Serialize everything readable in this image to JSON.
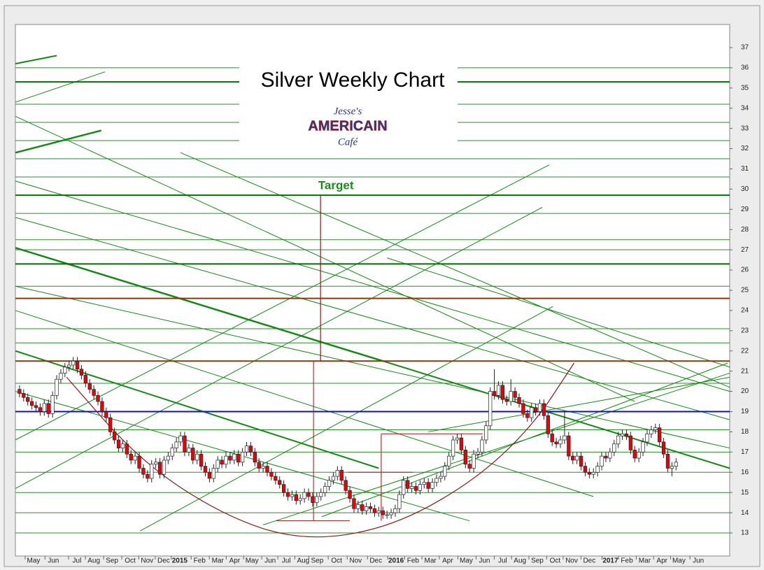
{
  "chart_data": {
    "type": "candlestick",
    "title": "Silver Weekly Chart",
    "logo": {
      "line1": "Jesse's",
      "line2": "AMERICAIN",
      "line3": "Café"
    },
    "xlim": [
      0,
      173
    ],
    "ylim": [
      11.86,
      38.14
    ],
    "yticks": [
      13,
      14,
      15,
      16,
      17,
      18,
      19,
      20,
      21,
      22,
      23,
      24,
      25,
      26,
      27,
      28,
      29,
      30,
      31,
      32,
      33,
      34,
      35,
      36,
      37
    ],
    "xticks": [
      {
        "value": 4.4,
        "label": "May"
      },
      {
        "value": 9.2,
        "label": "Jun"
      },
      {
        "value": 14.9,
        "label": "Jul"
      },
      {
        "value": 19.0,
        "label": "Aug"
      },
      {
        "value": 23.4,
        "label": "Sep"
      },
      {
        "value": 27.8,
        "label": "Oct"
      },
      {
        "value": 31.9,
        "label": "Nov"
      },
      {
        "value": 35.9,
        "label": "Dec"
      },
      {
        "value": 39.8,
        "label": "2015"
      },
      {
        "value": 44.6,
        "label": "Feb"
      },
      {
        "value": 49.0,
        "label": "Mar"
      },
      {
        "value": 53.1,
        "label": "Apr"
      },
      {
        "value": 57.3,
        "label": "May"
      },
      {
        "value": 61.7,
        "label": "Jun"
      },
      {
        "value": 65.6,
        "label": "Jul"
      },
      {
        "value": 69.7,
        "label": "Aug"
      },
      {
        "value": 73.1,
        "label": "Sep"
      },
      {
        "value": 77.8,
        "label": "Oct"
      },
      {
        "value": 82.4,
        "label": "Nov"
      },
      {
        "value": 87.3,
        "label": "Dec"
      },
      {
        "value": 92.2,
        "label": "2016"
      },
      {
        "value": 96.3,
        "label": "Feb"
      },
      {
        "value": 100.5,
        "label": "Mar"
      },
      {
        "value": 104.7,
        "label": "Apr"
      },
      {
        "value": 109.2,
        "label": "May"
      },
      {
        "value": 113.6,
        "label": "Jun"
      },
      {
        "value": 118.0,
        "label": "Jul"
      },
      {
        "value": 122.2,
        "label": "Aug"
      },
      {
        "value": 126.4,
        "label": "Sep"
      },
      {
        "value": 130.7,
        "label": "Oct"
      },
      {
        "value": 134.7,
        "label": "Nov"
      },
      {
        "value": 139.0,
        "label": "Dec"
      },
      {
        "value": 144.1,
        "label": "2017"
      },
      {
        "value": 148.1,
        "label": "Feb"
      },
      {
        "value": 152.4,
        "label": "Mar"
      },
      {
        "value": 156.6,
        "label": "Apr"
      },
      {
        "value": 160.7,
        "label": "May"
      },
      {
        "value": 165.4,
        "label": "Jun"
      }
    ],
    "up_color": "#ffffff",
    "down_color": "#e8000b",
    "x": [
      1,
      2,
      3,
      4,
      5,
      6,
      7,
      8,
      9,
      10,
      11,
      12,
      13,
      14,
      15,
      16,
      17,
      18,
      19,
      20,
      21,
      22,
      23,
      24,
      25,
      26,
      27,
      28,
      29,
      30,
      31,
      32,
      33,
      34,
      35,
      36,
      37,
      38,
      39,
      40,
      41,
      42,
      43,
      44,
      45,
      46,
      47,
      48,
      49,
      50,
      51,
      52,
      53,
      54,
      55,
      56,
      57,
      58,
      59,
      60,
      61,
      62,
      63,
      64,
      65,
      66,
      67,
      68,
      69,
      70,
      71,
      72,
      73,
      74,
      75,
      76,
      77,
      78,
      79,
      80,
      81,
      82,
      83,
      84,
      85,
      86,
      87,
      88,
      89,
      90,
      91,
      92,
      93,
      94,
      95,
      96,
      97,
      98,
      99,
      100,
      101,
      102,
      103,
      104,
      105,
      106,
      107,
      108,
      109,
      110,
      111,
      112,
      113,
      114,
      115,
      116,
      117,
      118,
      119,
      120,
      121,
      122,
      123,
      124,
      125,
      126,
      127,
      128,
      129,
      130,
      131,
      132,
      133,
      134,
      135,
      136,
      137,
      138,
      139,
      140,
      141,
      142,
      143,
      144,
      145,
      146,
      147,
      148,
      149,
      150,
      151,
      152,
      153,
      154,
      155,
      156,
      157,
      158,
      159,
      160
    ],
    "open": [
      20.1,
      19.9,
      19.7,
      19.5,
      19.3,
      19.2,
      19.0,
      19.4,
      18.9,
      19.8,
      20.6,
      20.9,
      21.2,
      21.3,
      21.5,
      21.1,
      20.8,
      20.4,
      20.1,
      19.8,
      19.5,
      19.0,
      18.7,
      18.0,
      17.6,
      17.2,
      17.4,
      16.9,
      16.6,
      16.8,
      16.2,
      15.9,
      15.7,
      16.4,
      16.5,
      15.9,
      16.6,
      16.8,
      17.2,
      17.5,
      17.8,
      17.0,
      17.2,
      16.6,
      16.9,
      16.3,
      16.0,
      15.7,
      16.2,
      16.6,
      16.4,
      16.8,
      16.6,
      16.9,
      16.5,
      17.0,
      17.3,
      17.0,
      16.5,
      16.2,
      16.3,
      16.0,
      15.8,
      15.6,
      15.4,
      15.0,
      14.8,
      14.9,
      14.6,
      14.7,
      15.0,
      14.8,
      14.5,
      14.8,
      15.0,
      15.3,
      15.6,
      15.8,
      16.1,
      15.6,
      15.1,
      14.7,
      14.2,
      14.4,
      14.1,
      14.3,
      14.2,
      14.0,
      14.1,
      13.9,
      13.9,
      14.0,
      14.2,
      14.9,
      15.6,
      15.2,
      15.3,
      15.1,
      15.4,
      15.5,
      15.2,
      15.5,
      15.7,
      15.8,
      16.3,
      16.8,
      17.6,
      17.7,
      17.1,
      16.4,
      16.2,
      16.9,
      17.0,
      17.6,
      18.3,
      20.0,
      19.8,
      20.3,
      19.6,
      19.5,
      20.0,
      19.7,
      19.4,
      18.9,
      18.7,
      19.2,
      19.0,
      19.4,
      18.8,
      17.9,
      17.5,
      17.4,
      17.6,
      17.8,
      16.8,
      16.6,
      16.8,
      16.3,
      16.0,
      15.9,
      16.0,
      16.3,
      16.8,
      16.7,
      17.0,
      17.4,
      17.8,
      17.9,
      17.8,
      17.1,
      16.7,
      17.0,
      17.5,
      17.9,
      18.1,
      18.2,
      17.5,
      16.9,
      16.2,
      16.3
    ],
    "high": [
      20.3,
      20.1,
      19.9,
      19.7,
      19.5,
      19.4,
      19.6,
      19.6,
      20.0,
      20.8,
      21.1,
      21.4,
      21.5,
      21.7,
      21.7,
      21.3,
      21.0,
      20.6,
      20.3,
      20.0,
      19.7,
      19.2,
      18.9,
      18.2,
      17.8,
      17.6,
      17.6,
      17.1,
      17.0,
      17.0,
      16.4,
      16.1,
      16.6,
      16.7,
      16.7,
      16.8,
      17.0,
      17.4,
      17.7,
      18.0,
      18.0,
      17.4,
      17.4,
      17.1,
      17.1,
      16.5,
      16.2,
      16.4,
      16.8,
      16.8,
      17.0,
      17.0,
      17.1,
      17.1,
      17.2,
      17.5,
      17.5,
      17.2,
      16.7,
      16.5,
      16.5,
      16.2,
      16.0,
      15.8,
      15.6,
      15.2,
      15.1,
      15.1,
      14.9,
      15.2,
      15.2,
      15.0,
      15.0,
      15.2,
      15.5,
      15.8,
      16.0,
      16.3,
      16.3,
      15.8,
      15.3,
      14.9,
      14.6,
      14.6,
      14.5,
      14.5,
      14.4,
      14.3,
      14.3,
      14.1,
      14.2,
      14.4,
      15.1,
      15.8,
      15.8,
      15.5,
      15.5,
      15.6,
      15.7,
      15.7,
      15.7,
      15.9,
      16.0,
      16.5,
      17.0,
      17.8,
      17.9,
      17.9,
      17.3,
      16.6,
      17.1,
      17.2,
      17.8,
      18.5,
      20.2,
      21.1,
      20.5,
      20.5,
      19.8,
      20.6,
      20.2,
      19.9,
      19.6,
      19.1,
      19.4,
      19.4,
      19.6,
      19.6,
      19.0,
      18.1,
      17.7,
      17.8,
      19.0,
      18.0,
      17.0,
      17.0,
      17.0,
      16.5,
      16.2,
      16.2,
      16.5,
      17.0,
      17.0,
      17.2,
      17.6,
      18.0,
      18.1,
      18.1,
      18.0,
      17.3,
      17.2,
      17.7,
      18.1,
      18.3,
      18.4,
      18.4,
      17.7,
      17.1,
      16.5,
      16.7
    ],
    "low": [
      19.7,
      19.5,
      19.3,
      19.1,
      19.0,
      18.8,
      18.8,
      18.7,
      18.7,
      19.6,
      20.4,
      20.7,
      21.0,
      21.1,
      20.9,
      20.6,
      20.2,
      19.9,
      19.6,
      19.3,
      18.8,
      18.5,
      17.8,
      17.4,
      17.0,
      17.0,
      16.7,
      16.4,
      16.4,
      16.0,
      15.7,
      15.5,
      15.5,
      16.2,
      15.7,
      15.7,
      16.4,
      16.6,
      17.0,
      17.3,
      16.8,
      16.8,
      16.4,
      16.4,
      16.1,
      15.8,
      15.5,
      15.5,
      16.0,
      16.2,
      16.2,
      16.4,
      16.4,
      16.3,
      16.3,
      16.8,
      16.8,
      16.3,
      16.0,
      16.0,
      15.8,
      15.6,
      15.4,
      15.2,
      14.8,
      14.6,
      14.6,
      14.4,
      14.4,
      14.5,
      14.6,
      14.3,
      14.3,
      14.6,
      14.8,
      15.1,
      15.4,
      15.6,
      15.4,
      14.9,
      14.5,
      14.0,
      14.0,
      13.9,
      13.9,
      14.0,
      13.8,
      13.8,
      13.7,
      13.7,
      13.7,
      13.8,
      14.0,
      14.7,
      15.0,
      15.0,
      14.9,
      14.9,
      15.2,
      15.0,
      15.0,
      15.3,
      15.5,
      15.6,
      16.1,
      16.6,
      17.4,
      16.9,
      16.2,
      16.0,
      16.0,
      16.7,
      16.8,
      17.4,
      18.1,
      19.6,
      19.6,
      19.4,
      19.3,
      19.3,
      19.5,
      19.2,
      18.7,
      18.5,
      18.5,
      18.8,
      18.8,
      18.6,
      17.7,
      17.3,
      17.2,
      17.2,
      17.4,
      16.6,
      16.4,
      16.4,
      16.1,
      15.8,
      15.7,
      15.7,
      15.8,
      16.1,
      16.5,
      16.5,
      16.8,
      17.2,
      17.6,
      17.6,
      16.9,
      16.5,
      16.5,
      16.8,
      17.3,
      17.7,
      17.9,
      17.3,
      16.7,
      16.0,
      15.8,
      16.1
    ],
    "close": [
      19.9,
      19.7,
      19.5,
      19.3,
      19.2,
      19.0,
      19.4,
      18.9,
      19.8,
      20.6,
      20.9,
      21.2,
      21.3,
      21.5,
      21.1,
      20.8,
      20.4,
      20.1,
      19.8,
      19.5,
      19.0,
      18.7,
      18.0,
      17.6,
      17.2,
      17.4,
      16.9,
      16.6,
      16.8,
      16.2,
      15.9,
      15.7,
      16.4,
      16.5,
      15.9,
      16.6,
      16.8,
      17.2,
      17.5,
      17.8,
      17.0,
      17.2,
      16.6,
      16.9,
      16.3,
      16.0,
      15.7,
      16.2,
      16.6,
      16.4,
      16.8,
      16.6,
      16.9,
      16.5,
      17.0,
      17.3,
      17.0,
      16.5,
      16.2,
      16.3,
      16.0,
      15.8,
      15.6,
      15.4,
      15.0,
      14.8,
      14.9,
      14.6,
      14.7,
      15.0,
      14.8,
      14.5,
      14.8,
      15.0,
      15.3,
      15.6,
      15.8,
      16.1,
      15.6,
      15.1,
      14.7,
      14.2,
      14.4,
      14.1,
      14.3,
      14.2,
      14.0,
      14.1,
      13.9,
      13.9,
      14.0,
      14.2,
      14.9,
      15.6,
      15.2,
      15.3,
      15.1,
      15.4,
      15.5,
      15.2,
      15.5,
      15.7,
      15.8,
      16.3,
      16.8,
      17.6,
      17.7,
      17.1,
      16.4,
      16.2,
      16.9,
      17.0,
      17.6,
      18.3,
      20.0,
      19.8,
      20.3,
      19.6,
      19.5,
      20.0,
      19.7,
      19.4,
      18.9,
      18.7,
      19.2,
      19.0,
      19.4,
      18.8,
      17.9,
      17.5,
      17.4,
      17.6,
      17.8,
      16.8,
      16.6,
      16.8,
      16.3,
      16.0,
      15.9,
      16.0,
      16.3,
      16.8,
      16.7,
      17.0,
      17.4,
      17.8,
      17.9,
      17.8,
      17.1,
      16.7,
      17.0,
      17.5,
      17.9,
      18.1,
      18.2,
      17.5,
      16.9,
      16.2,
      16.3,
      16.5
    ],
    "levels": [
      {
        "value": 35.3,
        "color": "#007000",
        "width": 2
      },
      {
        "value": 29.7,
        "color": "#007000",
        "width": 2
      },
      {
        "value": 26.3,
        "color": "#007000",
        "width": 2
      },
      {
        "value": 24.6,
        "color": "#8b3a0a",
        "width": 2
      },
      {
        "value": 21.5,
        "color": "#8b3a0a",
        "width": 2
      },
      {
        "value": 19.0,
        "color": "#1010c0",
        "width": 2
      }
    ],
    "thin_levels": [
      36.0,
      34.2,
      33.3,
      32.4,
      31.5,
      30.6,
      28.8,
      27.5,
      27.0,
      25.2,
      23.1,
      22.4,
      20.4,
      18.1,
      17.0,
      16.0,
      15.0,
      14.0,
      13.0
    ],
    "trend_lines": [
      [
        0,
        27.1,
        89,
        21.5,
        2.5
      ],
      [
        89,
        21.5,
        173,
        16.2,
        2
      ],
      [
        0,
        22.0,
        88,
        16.2,
        2
      ],
      [
        0,
        30.4,
        173,
        20.0,
        1
      ],
      [
        0,
        28.6,
        173,
        18.6,
        1
      ],
      [
        0,
        25.2,
        173,
        17.2,
        1
      ],
      [
        0,
        31.8,
        20.8,
        32.9,
        2.5
      ],
      [
        0,
        34.3,
        21.7,
        35.8,
        1
      ],
      [
        0,
        36.2,
        10,
        36.6,
        2
      ],
      [
        0,
        17.6,
        129.3,
        31.2,
        1
      ],
      [
        0,
        15.2,
        127.6,
        29.1,
        1
      ],
      [
        30.2,
        13.1,
        130.2,
        24.2,
        1
      ],
      [
        74.2,
        13.8,
        172.5,
        21.4,
        1
      ],
      [
        0,
        33.6,
        150,
        19.5,
        1
      ],
      [
        0,
        24.0,
        140,
        14.8,
        1
      ],
      [
        0,
        20.0,
        110,
        13.6,
        1
      ],
      [
        40,
        31.8,
        173,
        20.2,
        1
      ],
      [
        90,
        26.6,
        173,
        21.2,
        1
      ],
      [
        60,
        13.4,
        173,
        20.9,
        1
      ],
      [
        100,
        18.0,
        173,
        20.7,
        1
      ]
    ],
    "cup": [
      [
        12.4,
        20.7
      ],
      [
        30,
        16.6
      ],
      [
        50,
        13.9
      ],
      [
        69,
        12.6
      ],
      [
        90,
        13.2
      ],
      [
        110,
        15.4
      ],
      [
        125,
        18.2
      ],
      [
        135.3,
        21.4
      ]
    ],
    "target": {
      "label": "Target",
      "x": 73.9,
      "from": 21.5,
      "to": 29.7
    },
    "measure": {
      "x": 72.2,
      "from": 21.5,
      "to": 13.6,
      "x1": 63.2,
      "x2": 81
    },
    "handle": [
      [
        80.5,
        16.0,
        96.3,
        16.0
      ],
      [
        88.6,
        17.9,
        113.2,
        17.9
      ],
      [
        88.6,
        17.9,
        88.6,
        13.6
      ]
    ]
  }
}
